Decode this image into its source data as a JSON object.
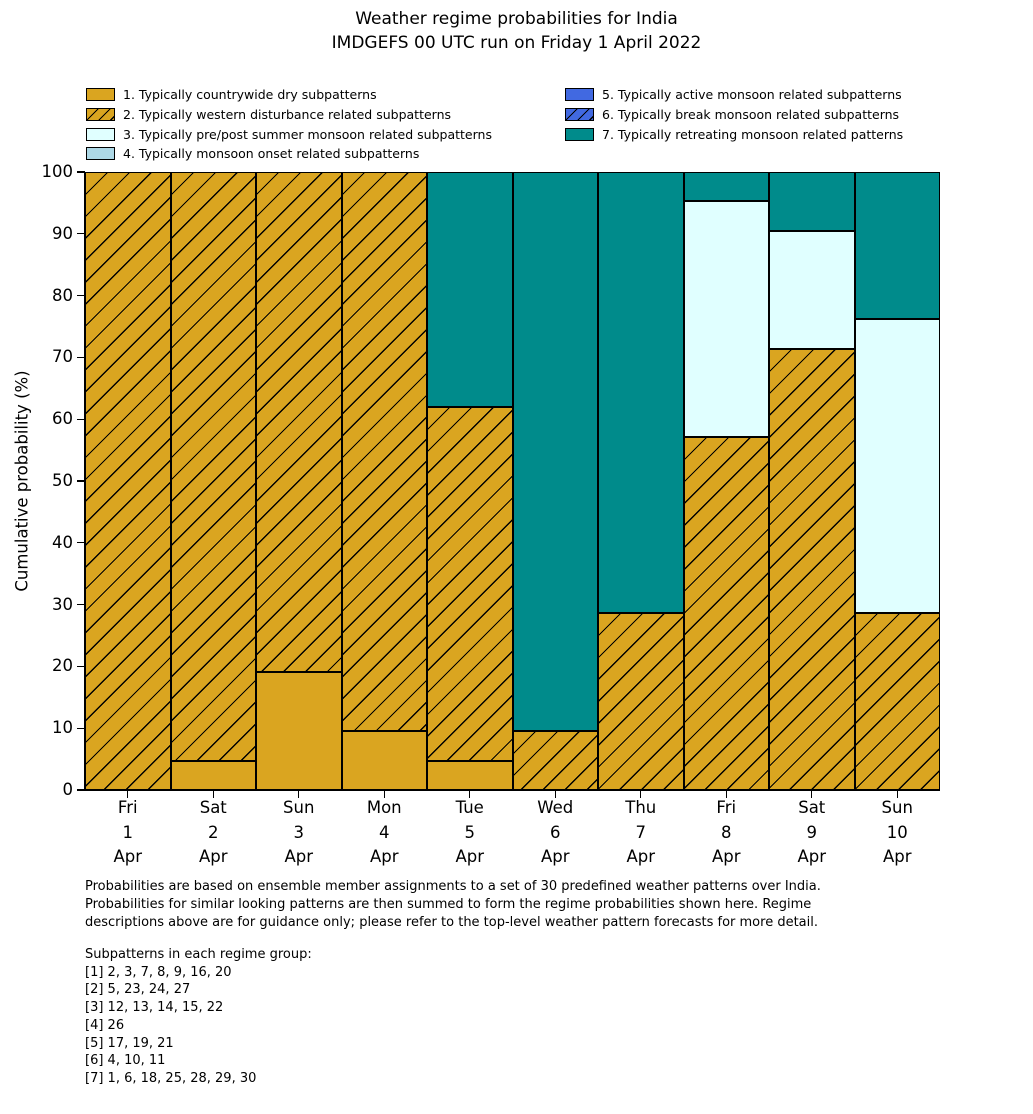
{
  "title": {
    "line1": "Weather regime probabilities for India",
    "line2": "IMDGEFS 00 UTC run on Friday 1 April 2022"
  },
  "chart_data": {
    "type": "bar",
    "stacked": true,
    "title": "Weather regime probabilities for India — IMDGEFS 00 UTC run on Friday 1 April 2022",
    "ylabel": "Cumulative probability (%)",
    "ylim": [
      0,
      100
    ],
    "yticks": [
      0,
      10,
      20,
      30,
      40,
      50,
      60,
      70,
      80,
      90,
      100
    ],
    "grid": false,
    "legend_position": "top, two columns, no frame",
    "categories": [
      {
        "day": "Fri",
        "date": "1",
        "month": "Apr"
      },
      {
        "day": "Sat",
        "date": "2",
        "month": "Apr"
      },
      {
        "day": "Sun",
        "date": "3",
        "month": "Apr"
      },
      {
        "day": "Mon",
        "date": "4",
        "month": "Apr"
      },
      {
        "day": "Tue",
        "date": "5",
        "month": "Apr"
      },
      {
        "day": "Wed",
        "date": "6",
        "month": "Apr"
      },
      {
        "day": "Thu",
        "date": "7",
        "month": "Apr"
      },
      {
        "day": "Fri",
        "date": "8",
        "month": "Apr"
      },
      {
        "day": "Sat",
        "date": "9",
        "month": "Apr"
      },
      {
        "day": "Sun",
        "date": "10",
        "month": "Apr"
      }
    ],
    "series": [
      {
        "name": "1. Typically countrywide dry subpatterns",
        "color": "#DAA520",
        "hatch": false,
        "values": [
          0,
          4.76,
          19.05,
          9.52,
          4.76,
          0,
          0,
          0,
          0,
          0
        ]
      },
      {
        "name": "2. Typically western disturbance related subpatterns",
        "color": "#DAA520",
        "hatch": true,
        "values": [
          100,
          95.24,
          80.95,
          90.48,
          57.14,
          9.52,
          28.57,
          57.14,
          71.43,
          28.57
        ]
      },
      {
        "name": "3. Typically pre/post summer monsoon related subpatterns",
        "color": "#E0FFFF",
        "hatch": false,
        "values": [
          0,
          0,
          0,
          0,
          0,
          0,
          0,
          38.1,
          19.05,
          47.62
        ]
      },
      {
        "name": "4. Typically monsoon onset related subpatterns",
        "color": "#ADD8E6",
        "hatch": false,
        "values": [
          0,
          0,
          0,
          0,
          0,
          0,
          0,
          0,
          0,
          0
        ]
      },
      {
        "name": "5. Typically active monsoon related subpatterns",
        "color": "#4169E1",
        "hatch": false,
        "values": [
          0,
          0,
          0,
          0,
          0,
          0,
          0,
          0,
          0,
          0
        ]
      },
      {
        "name": "6. Typically break monsoon related subpatterns",
        "color": "#4169E1",
        "hatch": true,
        "values": [
          0,
          0,
          0,
          0,
          0,
          0,
          0,
          0,
          0,
          0
        ]
      },
      {
        "name": "7. Typically retreating monsoon related patterns",
        "color": "#008B8B",
        "hatch": false,
        "values": [
          0,
          0,
          0,
          0,
          38.1,
          90.48,
          71.43,
          4.76,
          9.52,
          23.81
        ]
      }
    ]
  },
  "footnote": {
    "lines": [
      "Probabilities are based on ensemble member assignments to a set of 30 predefined weather patterns over India.",
      "Probabilities for similar looking patterns are then summed to form the regime probabilities shown here. Regime",
      "descriptions above are for guidance only; please refer to the top-level weather pattern forecasts for more detail."
    ]
  },
  "subpatterns": {
    "heading": "Subpatterns in each regime group:",
    "groups": [
      "[1] 2, 3, 7, 8, 9, 16, 20",
      "[2] 5, 23, 24, 27",
      "[3] 12, 13, 14, 15, 22",
      "[4] 26",
      "[5] 17, 19, 21",
      "[6] 4, 10, 11",
      "[7] 1, 6, 18, 25, 28, 29, 30"
    ]
  }
}
